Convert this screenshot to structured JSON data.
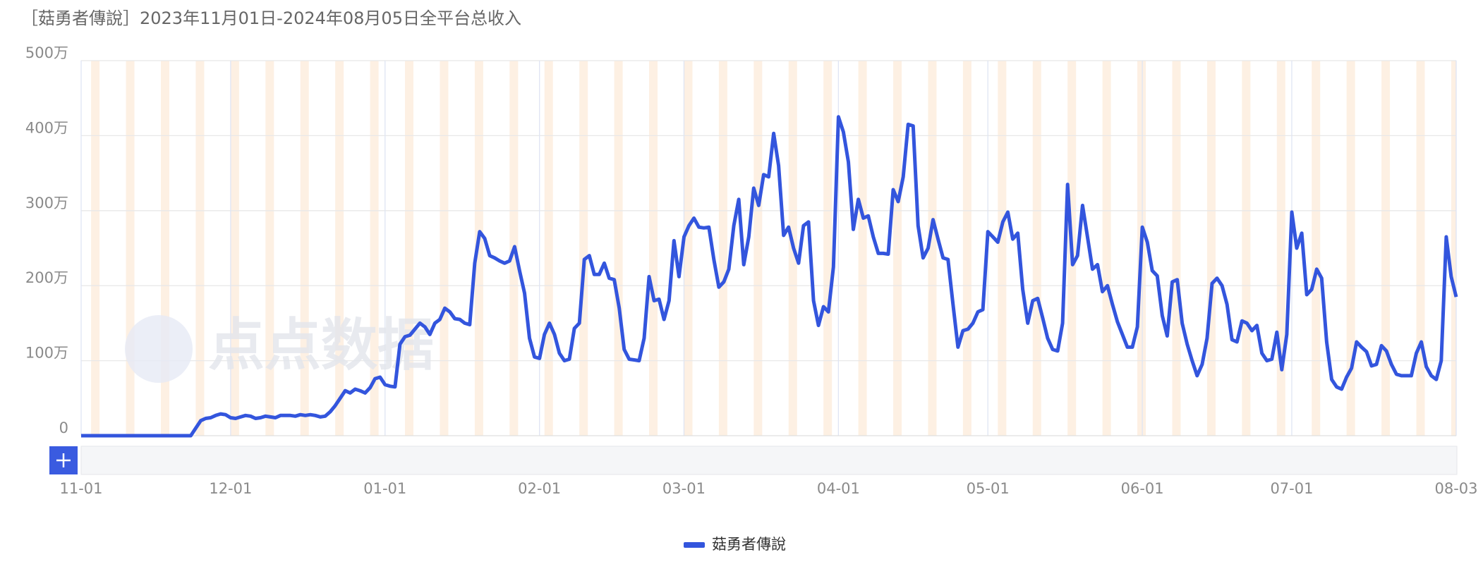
{
  "chart_data": {
    "type": "line",
    "title": "［菇勇者傳說］2023年11月01日-2024年08月05日全平台总收入",
    "watermark": "点点数据",
    "x": [
      "11-01",
      "11-02",
      "11-03",
      "11-04",
      "11-05",
      "11-06",
      "11-07",
      "11-08",
      "11-09",
      "11-10",
      "11-11",
      "11-12",
      "11-13",
      "11-14",
      "11-15",
      "11-16",
      "11-17",
      "11-18",
      "11-19",
      "11-20",
      "11-21",
      "11-22",
      "11-23",
      "11-24",
      "11-25",
      "11-26",
      "11-27",
      "11-28",
      "11-29",
      "11-30",
      "12-01",
      "12-02",
      "12-03",
      "12-04",
      "12-05",
      "12-06",
      "12-07",
      "12-08",
      "12-09",
      "12-10",
      "12-11",
      "12-12",
      "12-13",
      "12-14",
      "12-15",
      "12-16",
      "12-17",
      "12-18",
      "12-19",
      "12-20",
      "12-21",
      "12-22",
      "12-23",
      "12-24",
      "12-25",
      "12-26",
      "12-27",
      "12-28",
      "12-29",
      "12-30",
      "12-31",
      "01-01",
      "01-02",
      "01-03",
      "01-04",
      "01-05",
      "01-06",
      "01-07",
      "01-08",
      "01-09",
      "01-10",
      "01-11",
      "01-12",
      "01-13",
      "01-14",
      "01-15",
      "01-16",
      "01-17",
      "01-18",
      "01-19",
      "01-20",
      "01-21",
      "01-22",
      "01-23",
      "01-24",
      "01-25",
      "01-26",
      "01-27",
      "01-28",
      "01-29",
      "01-30",
      "01-31",
      "02-01",
      "02-02",
      "02-03",
      "02-04",
      "02-05",
      "02-06",
      "02-07",
      "02-08",
      "02-09",
      "02-10",
      "02-11",
      "02-12",
      "02-13",
      "02-14",
      "02-15",
      "02-16",
      "02-17",
      "02-18",
      "02-19",
      "02-20",
      "02-21",
      "02-22",
      "02-23",
      "02-24",
      "02-25",
      "02-26",
      "02-27",
      "02-28",
      "02-29",
      "03-01",
      "03-02",
      "03-03",
      "03-04",
      "03-05",
      "03-06",
      "03-07",
      "03-08",
      "03-09",
      "03-10",
      "03-11",
      "03-12",
      "03-13",
      "03-14",
      "03-15",
      "03-16",
      "03-17",
      "03-18",
      "03-19",
      "03-20",
      "03-21",
      "03-22",
      "03-23",
      "03-24",
      "03-25",
      "03-26",
      "03-27",
      "03-28",
      "03-29",
      "03-30",
      "03-31",
      "04-01",
      "04-02",
      "04-03",
      "04-04",
      "04-05",
      "04-06",
      "04-07",
      "04-08",
      "04-09",
      "04-10",
      "04-11",
      "04-12",
      "04-13",
      "04-14",
      "04-15",
      "04-16",
      "04-17",
      "04-18",
      "04-19",
      "04-20",
      "04-21",
      "04-22",
      "04-23",
      "04-24",
      "04-25",
      "04-26",
      "04-27",
      "04-28",
      "04-29",
      "04-30",
      "05-01",
      "05-02",
      "05-03",
      "05-04",
      "05-05",
      "05-06",
      "05-07",
      "05-08",
      "05-09",
      "05-10",
      "05-11",
      "05-12",
      "05-13",
      "05-14",
      "05-15",
      "05-16",
      "05-17",
      "05-18",
      "05-19",
      "05-20",
      "05-21",
      "05-22",
      "05-23",
      "05-24",
      "05-25",
      "05-26",
      "05-27",
      "05-28",
      "05-29",
      "05-30",
      "05-31",
      "06-01",
      "06-02",
      "06-03",
      "06-04",
      "06-05",
      "06-06",
      "06-07",
      "06-08",
      "06-09",
      "06-10",
      "06-11",
      "06-12",
      "06-13",
      "06-14",
      "06-15",
      "06-16",
      "06-17",
      "06-18",
      "06-19",
      "06-20",
      "06-21",
      "06-22",
      "06-23",
      "06-24",
      "06-25",
      "06-26",
      "06-27",
      "06-28",
      "06-29",
      "06-30",
      "07-01",
      "07-02",
      "07-03",
      "07-04",
      "07-05",
      "07-06",
      "07-07",
      "07-08",
      "07-09",
      "07-10",
      "07-11",
      "07-12",
      "07-13",
      "07-14",
      "07-15",
      "07-16",
      "07-17",
      "07-18",
      "07-19",
      "07-20",
      "07-21",
      "07-22",
      "07-23",
      "07-24",
      "07-25",
      "07-26",
      "07-27",
      "07-28",
      "07-29",
      "07-30",
      "07-31",
      "08-01",
      "08-02",
      "08-03"
    ],
    "series": [
      {
        "name": "菇勇者傳說",
        "color": "#3355dd",
        "values": [
          0,
          0,
          0,
          0,
          0,
          0,
          0,
          0,
          0,
          0,
          0,
          0,
          0,
          0,
          0,
          0,
          0,
          0,
          0,
          0,
          0,
          0,
          0,
          10,
          20,
          23,
          24,
          27,
          29,
          28,
          24,
          23,
          25,
          27,
          26,
          23,
          24,
          26,
          25,
          24,
          27,
          27,
          27,
          26,
          28,
          27,
          28,
          27,
          25,
          26,
          32,
          40,
          50,
          60,
          57,
          62,
          60,
          57,
          64,
          76,
          78,
          68,
          66,
          65,
          122,
          132,
          134,
          142,
          150,
          145,
          135,
          150,
          155,
          170,
          165,
          156,
          155,
          150,
          148,
          230,
          272,
          263,
          240,
          237,
          233,
          230,
          233,
          252,
          220,
          190,
          130,
          105,
          103,
          135,
          150,
          135,
          110,
          100,
          102,
          143,
          150,
          235,
          240,
          215,
          215,
          230,
          210,
          208,
          170,
          115,
          102,
          101,
          100,
          130,
          212,
          180,
          182,
          155,
          180,
          260,
          212,
          265,
          280,
          290,
          278,
          277,
          278,
          235,
          198,
          205,
          222,
          280,
          315,
          228,
          265,
          330,
          307,
          348,
          345,
          403,
          360,
          267,
          278,
          250,
          230,
          280,
          285,
          180,
          147,
          172,
          165,
          225,
          425,
          405,
          365,
          275,
          315,
          290,
          293,
          265,
          243,
          243,
          242,
          328,
          312,
          345,
          415,
          413,
          280,
          237,
          250,
          288,
          262,
          237,
          235,
          175,
          118,
          140,
          142,
          150,
          165,
          168,
          272,
          265,
          258,
          285,
          298,
          262,
          270,
          195,
          150,
          180,
          183,
          157,
          130,
          115,
          113,
          150,
          335,
          228,
          240,
          307,
          265,
          222,
          228,
          192,
          200,
          175,
          152,
          135,
          118,
          118,
          145,
          278,
          258,
          220,
          213,
          160,
          133,
          205,
          208,
          150,
          122,
          100,
          80,
          95,
          130,
          203,
          210,
          200,
          175,
          128,
          125,
          153,
          150,
          140,
          147,
          110,
          100,
          102,
          138,
          88,
          135,
          298,
          250,
          270,
          188,
          195,
          222,
          210,
          125,
          75,
          65,
          62,
          78,
          90,
          125,
          118,
          112,
          93,
          95,
          120,
          113,
          95,
          82,
          80,
          80,
          80,
          110,
          125,
          92,
          80,
          75,
          100,
          265,
          212,
          185
        ]
      }
    ],
    "xticks": [
      "11-01",
      "12-01",
      "01-01",
      "02-01",
      "03-01",
      "04-01",
      "05-01",
      "06-01",
      "07-01",
      "08-03"
    ],
    "ylim": [
      0,
      500
    ],
    "yticks": [
      0,
      {
        "value": 100,
        "label": "100万"
      },
      {
        "value": 200,
        "label": "200万"
      },
      {
        "value": 300,
        "label": "300万"
      },
      {
        "value": 400,
        "label": "400万"
      },
      {
        "value": 500,
        "label": "500万"
      }
    ],
    "grid": true,
    "legend": "bottom"
  }
}
